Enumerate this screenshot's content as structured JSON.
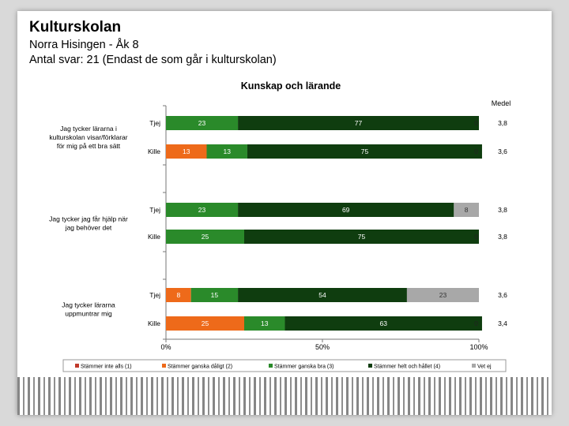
{
  "header": {
    "title": "Kulturskolan",
    "line1": "Norra Hisingen - Åk 8",
    "line2": "Antal svar: 21 (Endast de som går i kulturskolan)"
  },
  "chart_data": {
    "type": "bar",
    "orientation": "horizontal",
    "stacked": true,
    "title": "Kunskap och lärande",
    "medel_label": "Medel",
    "x_ticks": [
      "0%",
      "50%",
      "100%"
    ],
    "xlim": [
      0,
      100
    ],
    "legend_position": "bottom",
    "series": [
      {
        "name": "Stämmer inte alls (1)",
        "color": "#c0392b"
      },
      {
        "name": "Stämmer ganska dåligt (2)",
        "color": "#ee6a1a"
      },
      {
        "name": "Stämmer ganska bra (3)",
        "color": "#2a8a2a"
      },
      {
        "name": "Stämmer helt och hållet (4)",
        "color": "#0f3d0f"
      },
      {
        "name": "Vet ej",
        "color": "#a8a8a8"
      }
    ],
    "groups": [
      {
        "question": [
          "Jag tycker lärarna i",
          "kulturskolan visar/förklarar",
          "för mig på ett bra sätt"
        ],
        "rows": [
          {
            "label": "Tjej",
            "values": [
              0,
              0,
              23,
              77,
              0
            ],
            "value_labels": [
              "0",
              "",
              "23",
              "77",
              "0"
            ],
            "medel": "3,8"
          },
          {
            "label": "Kille",
            "values": [
              0,
              13,
              13,
              75,
              0
            ],
            "value_labels": [
              "0",
              "13",
              "13",
              "75",
              "0"
            ],
            "medel": "3,6"
          }
        ]
      },
      {
        "question": [
          "Jag tycker jag får hjälp när",
          "jag behöver det"
        ],
        "rows": [
          {
            "label": "Tjej",
            "values": [
              0,
              0,
              23,
              69,
              8
            ],
            "value_labels": [
              "0",
              "",
              "23",
              "69",
              "8"
            ],
            "medel": "3,8"
          },
          {
            "label": "Kille",
            "values": [
              0,
              0,
              25,
              75,
              0
            ],
            "value_labels": [
              "0",
              "",
              "25",
              "75",
              "0"
            ],
            "medel": "3,8"
          }
        ]
      },
      {
        "question": [
          "Jag tycker lärarna",
          "uppmuntrar mig"
        ],
        "rows": [
          {
            "label": "Tjej",
            "values": [
              0,
              8,
              15,
              54,
              23
            ],
            "value_labels": [
              "0",
              "8",
              "15",
              "54",
              "23"
            ],
            "medel": "3,6"
          },
          {
            "label": "Kille",
            "values": [
              0,
              25,
              13,
              63,
              0
            ],
            "value_labels": [
              "0",
              "25",
              "13",
              "63",
              "0"
            ],
            "medel": "3,4"
          }
        ]
      }
    ]
  }
}
